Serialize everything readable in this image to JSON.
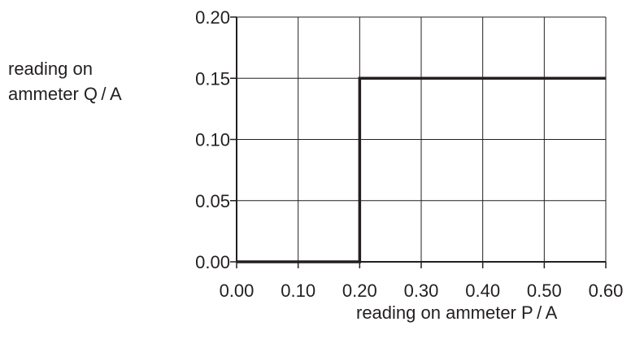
{
  "chart_data": {
    "type": "line",
    "ylabel_lines": [
      "reading on",
      "ammeter Q / A"
    ],
    "xlabel": "reading on ammeter P / A",
    "x_ticks": [
      "0.00",
      "0.10",
      "0.20",
      "0.30",
      "0.40",
      "0.50",
      "0.60"
    ],
    "y_ticks": [
      "0.00",
      "0.05",
      "0.10",
      "0.15",
      "0.20"
    ],
    "xlim": [
      0,
      0.6
    ],
    "ylim": [
      0,
      0.2
    ],
    "grid": true,
    "series": [
      {
        "x": [
          0.0,
          0.2,
          0.2,
          0.6
        ],
        "y": [
          0.0,
          0.0,
          0.15,
          0.15
        ]
      }
    ]
  }
}
